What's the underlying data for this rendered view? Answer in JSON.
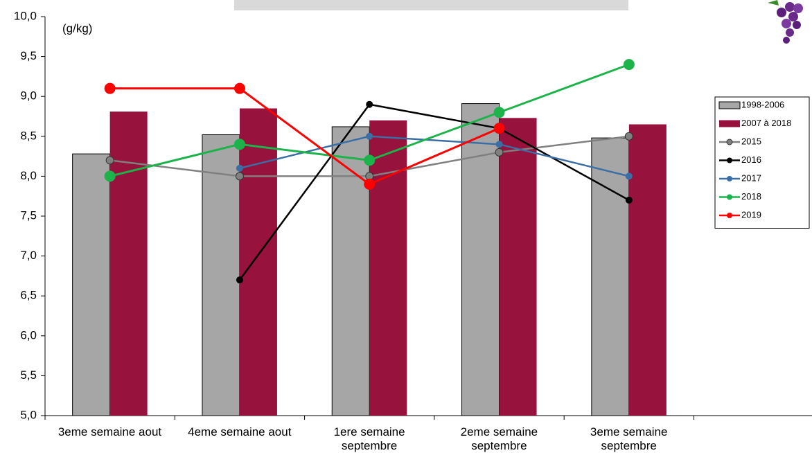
{
  "chart_data": {
    "type": "bar-line",
    "annotation": "(g/kg)",
    "categories": [
      "3eme semaine aout",
      "4eme semaine aout",
      "1ere semaine septembre",
      "2eme semaine septembre",
      "3eme semaine septembre",
      null
    ],
    "series": [
      {
        "name": "1998-2006",
        "type": "bar",
        "color": "#a6a6a6",
        "values": [
          8.28,
          8.52,
          8.62,
          8.91,
          8.48,
          null
        ]
      },
      {
        "name": "2007 à 2018",
        "type": "bar",
        "color": "#97123c",
        "values": [
          8.81,
          8.85,
          8.7,
          8.73,
          8.65,
          null
        ]
      },
      {
        "name": "2015",
        "type": "line",
        "color": "#808080",
        "values": [
          8.2,
          8.0,
          8.0,
          8.3,
          8.5,
          null
        ]
      },
      {
        "name": "2016",
        "type": "line",
        "color": "#000000",
        "values": [
          null,
          6.7,
          8.9,
          8.6,
          7.7,
          null
        ]
      },
      {
        "name": "2017",
        "type": "line",
        "color": "#3a6ea5",
        "values": [
          null,
          8.1,
          8.5,
          8.4,
          8.0,
          null
        ]
      },
      {
        "name": "2018",
        "type": "line",
        "color": "#1db34b",
        "values": [
          8.0,
          8.4,
          8.2,
          8.8,
          9.4,
          null
        ]
      },
      {
        "name": "2019",
        "type": "line",
        "color": "#ff0000",
        "values": [
          9.1,
          9.1,
          7.9,
          8.6,
          null,
          null
        ]
      }
    ],
    "ylim": [
      5,
      10
    ],
    "yticks": [
      {
        "value": 5,
        "label": "5,0"
      },
      {
        "value": 5.5,
        "label": "5,5"
      },
      {
        "value": 6,
        "label": "6,0"
      },
      {
        "value": 6.5,
        "label": "6,5"
      },
      {
        "value": 7,
        "label": "7,0"
      },
      {
        "value": 7.5,
        "label": "7,5"
      },
      {
        "value": 8,
        "label": "8,0"
      },
      {
        "value": 8.5,
        "label": "8,5"
      },
      {
        "value": 9,
        "label": "9,0"
      },
      {
        "value": 9.5,
        "label": "9,5"
      },
      {
        "value": 10,
        "label": "10,0"
      }
    ],
    "grid": false,
    "legend": "right"
  }
}
